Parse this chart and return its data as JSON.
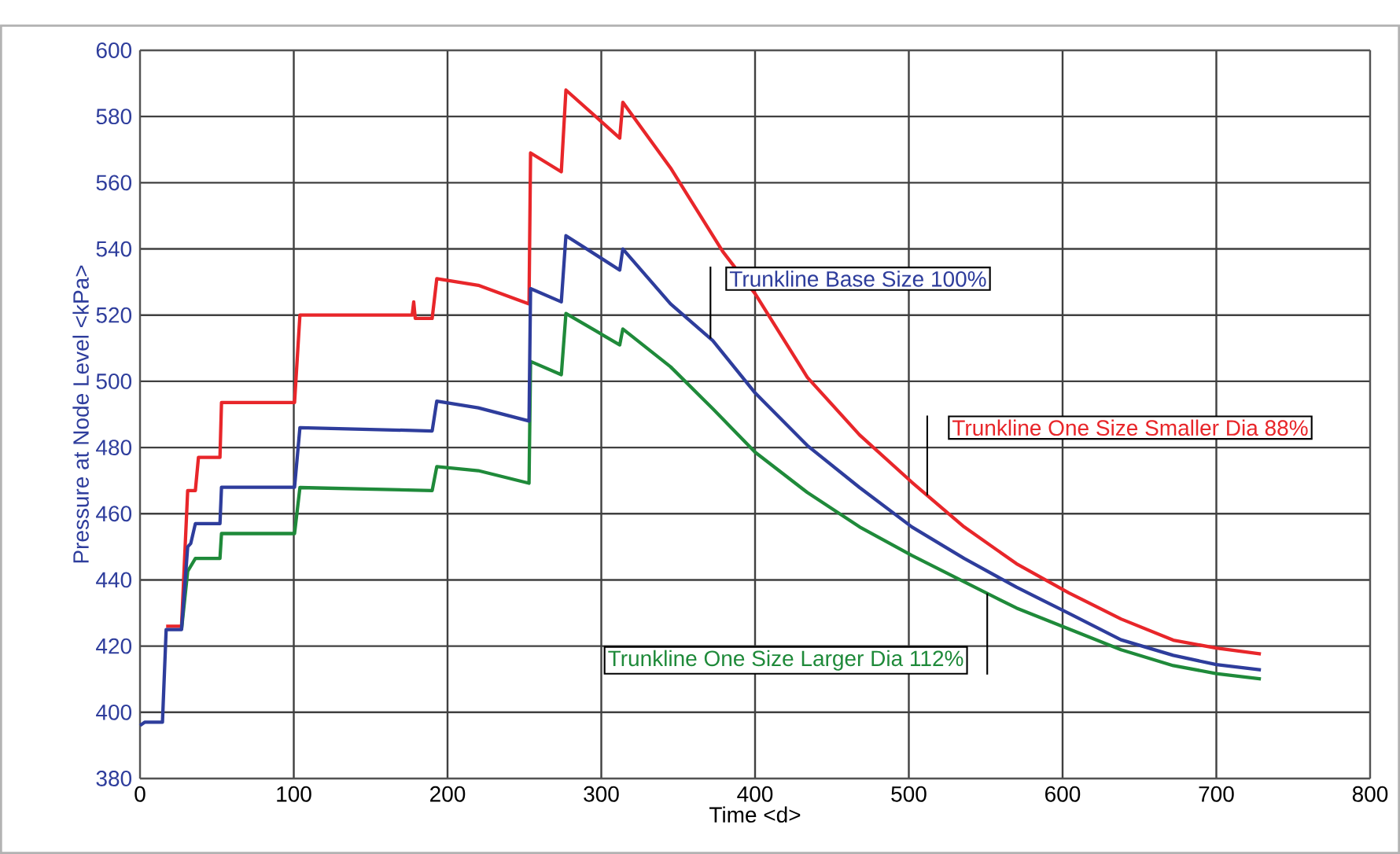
{
  "chart_data": {
    "type": "line",
    "xlabel": "Time <d>",
    "ylabel": "Pressure at Node Level <kPa>",
    "xlim": [
      0,
      800
    ],
    "xticks": [
      0,
      100,
      200,
      300,
      400,
      500,
      600,
      700,
      800
    ],
    "ylim": [
      380,
      600
    ],
    "yticks": [
      380,
      400,
      420,
      440,
      460,
      480,
      500,
      520,
      540,
      560,
      580,
      600
    ],
    "grid": true,
    "series": [
      {
        "name": "Trunkline One Size Smaller Dia 88%",
        "color": "#e8262a",
        "x": [
          17,
          27,
          31,
          36,
          38,
          52,
          53,
          100.5,
          104,
          177,
          178,
          179,
          190,
          193,
          220,
          253,
          254,
          274,
          277,
          312,
          314,
          345,
          379,
          400,
          434,
          468,
          502,
          536,
          570,
          604,
          638,
          672,
          700,
          729
        ],
        "values": [
          426,
          426,
          467,
          467,
          477,
          477,
          493.6,
          493.6,
          520,
          520,
          524,
          519,
          519,
          531,
          529,
          523.4,
          569,
          563.3,
          588,
          573.5,
          584.3,
          564.5,
          539.2,
          526.5,
          501.2,
          483.8,
          469.5,
          456,
          444.9,
          436.1,
          428.2,
          421.8,
          419.4,
          417.6
        ]
      },
      {
        "name": "Trunkline One Size Larger Dia 112%",
        "color": "#1f8a3a",
        "x": [
          27,
          31,
          36,
          52,
          53,
          100.5,
          104,
          190,
          193,
          220,
          253,
          254,
          274,
          277,
          312,
          314,
          345,
          372.5,
          400,
          434,
          468,
          502,
          536,
          570,
          604,
          638,
          672,
          700,
          729
        ],
        "values": [
          425,
          442.6,
          446.5,
          446.5,
          454,
          454,
          467.9,
          467,
          474.2,
          473,
          469.2,
          506,
          502,
          520.5,
          511,
          515.8,
          504.4,
          491.7,
          478.6,
          466.4,
          456,
          447.4,
          439.4,
          431.5,
          425.2,
          418.9,
          414.1,
          411.7,
          410.1
        ]
      },
      {
        "name": "Trunkline Base Size 100%",
        "color": "#2e3d9c",
        "x": [
          0,
          3,
          14.6,
          17,
          27,
          31,
          33,
          36,
          52,
          53,
          100.5,
          104,
          190,
          193,
          220,
          253,
          254,
          274,
          277,
          312,
          314,
          345,
          372.5,
          400,
          434,
          468,
          502,
          536,
          570,
          604,
          638,
          672,
          700,
          729
        ],
        "values": [
          396,
          397,
          397,
          425,
          425,
          450,
          451,
          457,
          457,
          468,
          468,
          486,
          485,
          494,
          492,
          488,
          528,
          524,
          544,
          533.6,
          540,
          523.4,
          512.3,
          496.5,
          480.6,
          467.9,
          456,
          446.5,
          437.8,
          429.9,
          421.9,
          417.2,
          414.4,
          412.8
        ]
      }
    ]
  }
}
